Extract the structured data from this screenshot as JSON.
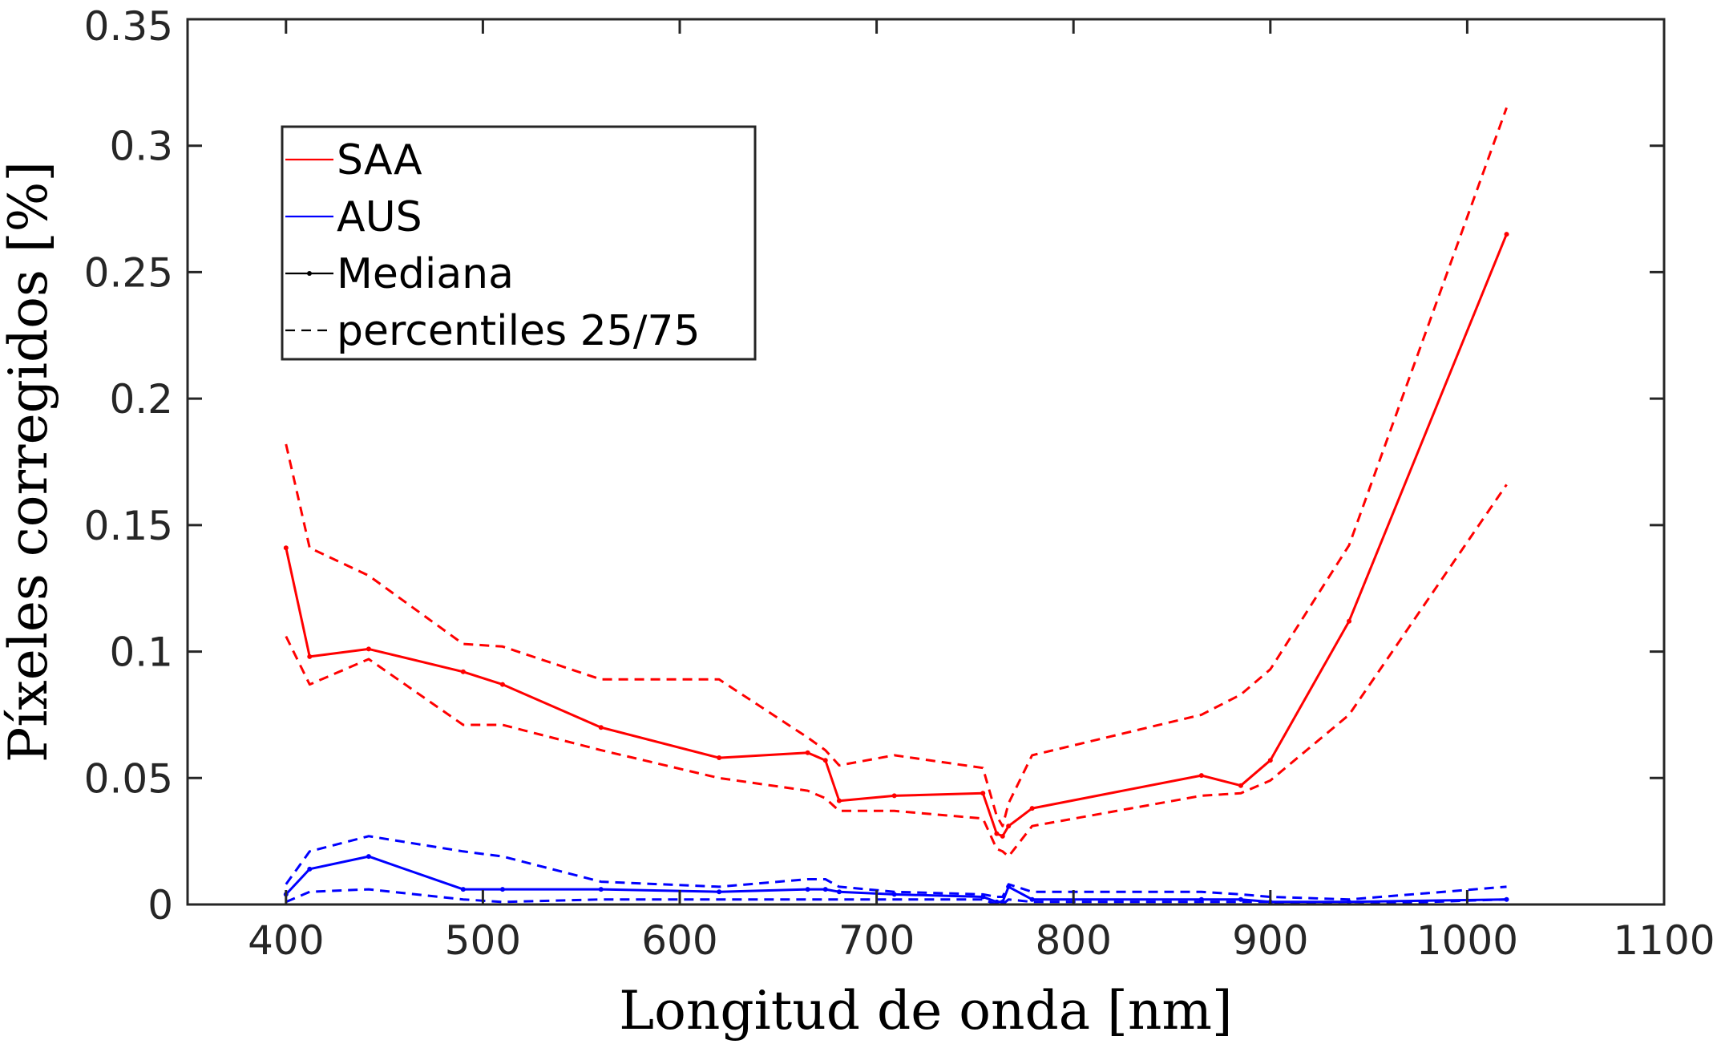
{
  "chart_data": {
    "type": "line",
    "xlabel": "Longitud de onda [nm]",
    "ylabel": "Píxeles corregidos [%]",
    "xlim": [
      350,
      1100
    ],
    "ylim": [
      0,
      0.35
    ],
    "xticks": [
      "400",
      "500",
      "600",
      "700",
      "800",
      "900",
      "1000",
      "1100"
    ],
    "xtick_values": [
      400,
      500,
      600,
      700,
      800,
      900,
      1000,
      1100
    ],
    "yticks": [
      "0",
      "0.05",
      "0.1",
      "0.15",
      "0.2",
      "0.25",
      "0.3",
      "0.35"
    ],
    "ytick_values": [
      0,
      0.05,
      0.1,
      0.15,
      0.2,
      0.25,
      0.3,
      0.35
    ],
    "grid": false,
    "legend_position": "top-left",
    "legend": [
      {
        "label": "SAA",
        "color": "#ff0000",
        "style": "solid"
      },
      {
        "label": "AUS",
        "color": "#0000ff",
        "style": "solid"
      },
      {
        "label": "Mediana",
        "color": "#000000",
        "style": "solid-marker"
      },
      {
        "label": "percentiles 25/75",
        "color": "#000000",
        "style": "dashed"
      }
    ],
    "x": [
      400,
      412,
      442,
      490,
      510,
      560,
      620,
      665,
      674,
      681,
      709,
      754,
      761,
      764,
      767,
      779,
      865,
      885,
      900,
      940,
      1020
    ],
    "series": [
      {
        "name": "SAA",
        "stat": "Mediana",
        "color": "#ff0000",
        "dash": false,
        "values": [
          0.141,
          0.098,
          0.101,
          0.092,
          0.087,
          0.07,
          0.058,
          0.06,
          0.057,
          0.041,
          0.043,
          0.044,
          0.028,
          0.027,
          0.031,
          0.038,
          0.051,
          0.047,
          0.057,
          0.112,
          0.265
        ]
      },
      {
        "name": "SAA",
        "stat": "percentil 75",
        "color": "#ff0000",
        "dash": true,
        "values": [
          0.182,
          0.141,
          0.13,
          0.103,
          0.102,
          0.089,
          0.089,
          0.066,
          0.061,
          0.055,
          0.059,
          0.054,
          0.035,
          0.031,
          0.04,
          0.059,
          0.075,
          0.083,
          0.093,
          0.142,
          0.315
        ]
      },
      {
        "name": "SAA",
        "stat": "percentil 25",
        "color": "#ff0000",
        "dash": true,
        "values": [
          0.106,
          0.087,
          0.097,
          0.071,
          0.071,
          0.061,
          0.05,
          0.045,
          0.042,
          0.037,
          0.037,
          0.034,
          0.022,
          0.021,
          0.019,
          0.031,
          0.043,
          0.044,
          0.049,
          0.075,
          0.166
        ]
      },
      {
        "name": "AUS",
        "stat": "Mediana",
        "color": "#0000ff",
        "dash": false,
        "values": [
          0.004,
          0.014,
          0.019,
          0.006,
          0.006,
          0.006,
          0.005,
          0.006,
          0.006,
          0.005,
          0.004,
          0.003,
          0.001,
          0.001,
          0.007,
          0.002,
          0.002,
          0.002,
          0.001,
          0.001,
          0.002
        ]
      },
      {
        "name": "AUS",
        "stat": "percentil 75",
        "color": "#0000ff",
        "dash": true,
        "values": [
          0.008,
          0.021,
          0.027,
          0.021,
          0.019,
          0.009,
          0.007,
          0.01,
          0.01,
          0.007,
          0.005,
          0.004,
          0.003,
          0.003,
          0.008,
          0.005,
          0.005,
          0.004,
          0.003,
          0.002,
          0.007
        ]
      },
      {
        "name": "AUS",
        "stat": "percentil 25",
        "color": "#0000ff",
        "dash": true,
        "values": [
          0.001,
          0.005,
          0.006,
          0.002,
          0.001,
          0.002,
          0.002,
          0.002,
          0.002,
          0.002,
          0.002,
          0.002,
          0.0,
          0.0,
          0.002,
          0.001,
          0.001,
          0.001,
          0.001,
          0.0,
          0.002
        ]
      }
    ]
  }
}
